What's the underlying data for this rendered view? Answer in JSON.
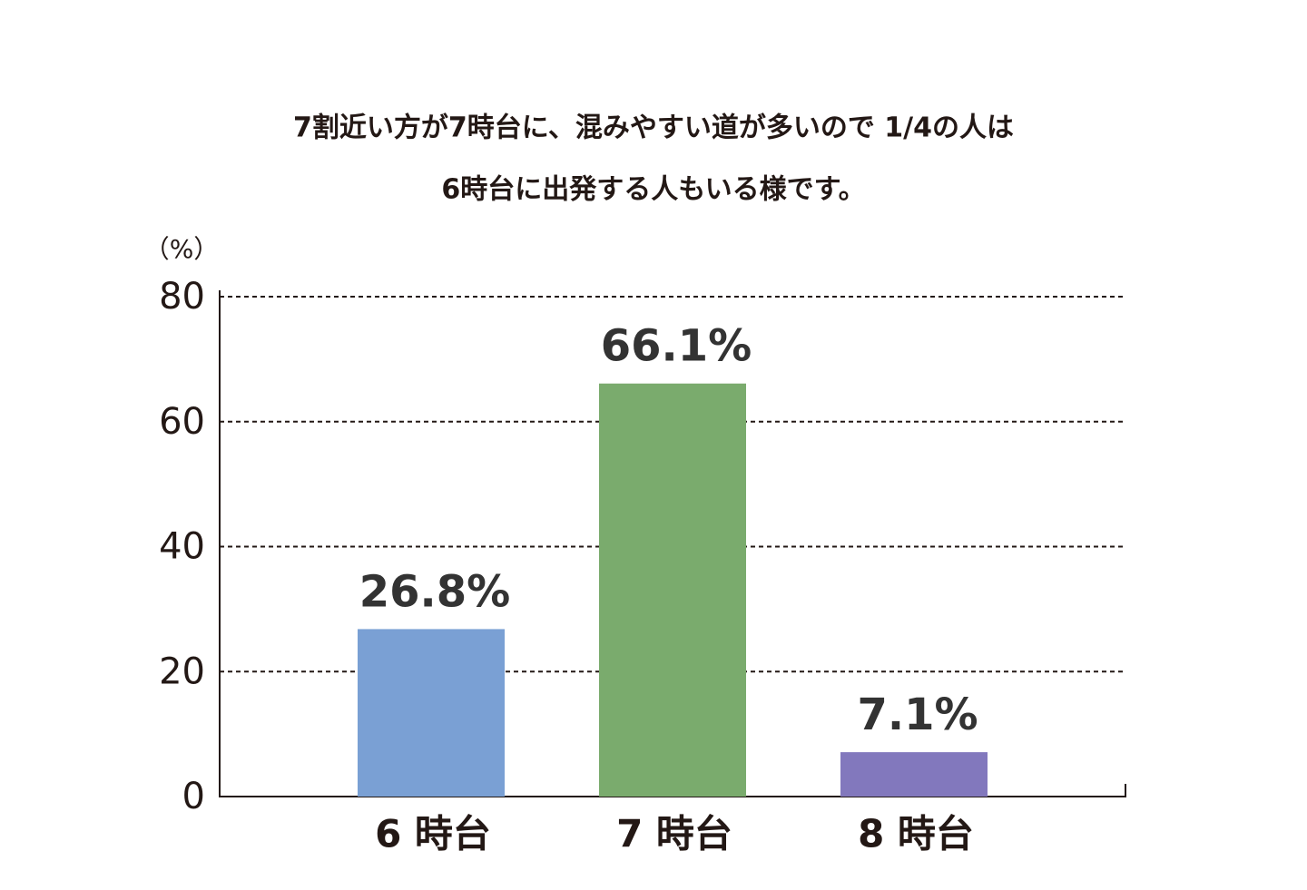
{
  "chart_data": {
    "type": "bar",
    "title": [
      "7割近い方が7時台に、混みやすい道が多いので 1/4の人は",
      "6時台に出発する人もいる様です。"
    ],
    "y_unit": "（%）",
    "categories": [
      "6 時台",
      "7 時台",
      "8 時台"
    ],
    "values": [
      26.8,
      66.1,
      7.1
    ],
    "value_labels": [
      "26.8%",
      "66.1%",
      "7.1%"
    ],
    "colors": [
      "#7aa0d4",
      "#7aab6d",
      "#8278bd"
    ],
    "ylim": [
      0,
      80
    ],
    "yticks": [
      0,
      20,
      40,
      60,
      80
    ],
    "grid": true
  }
}
